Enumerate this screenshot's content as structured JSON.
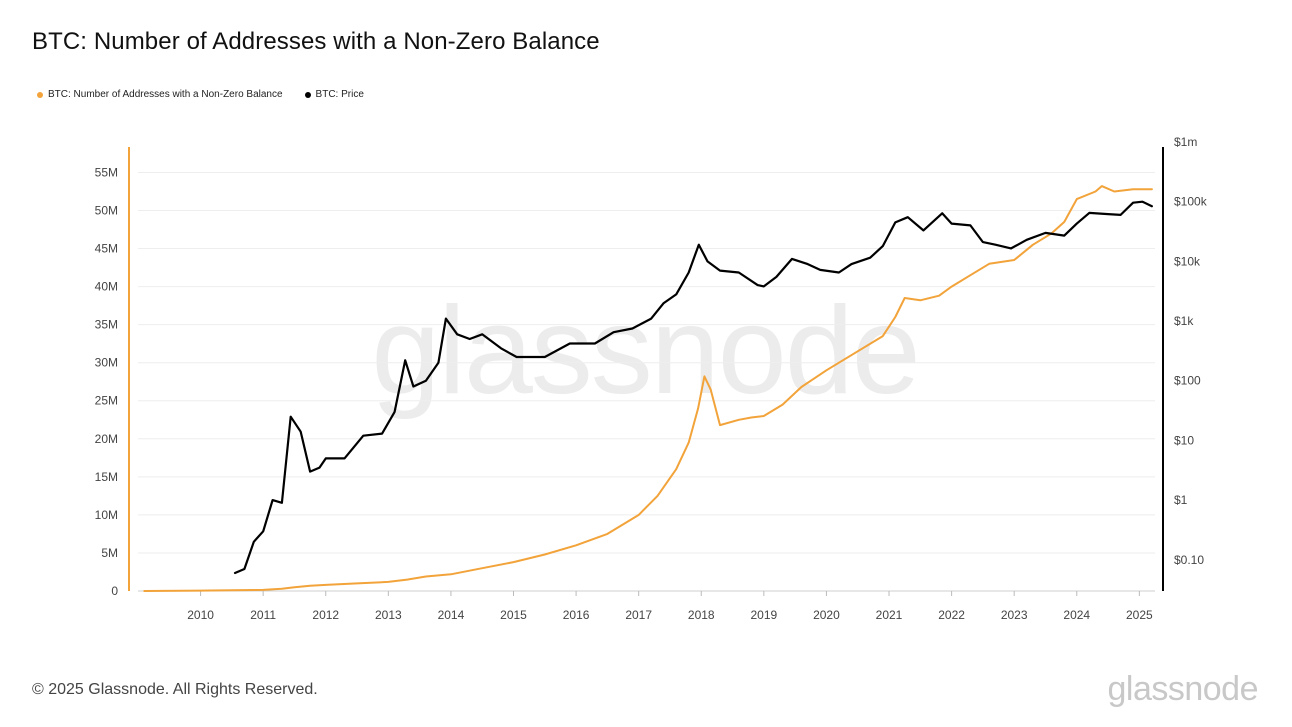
{
  "chart_data": {
    "type": "line",
    "title": "BTC: Number of Addresses with a Non-Zero Balance",
    "legend": [
      {
        "name": "BTC: Number of Addresses with a Non-Zero Balance",
        "color": "#f2a33a"
      },
      {
        "name": "BTC: Price",
        "color": "#000000"
      }
    ],
    "legend_position": "top-left",
    "grid": true,
    "watermark": "glassnode",
    "x_ticks": [
      "2010",
      "2011",
      "2012",
      "2013",
      "2014",
      "2015",
      "2016",
      "2017",
      "2018",
      "2019",
      "2020",
      "2021",
      "2022",
      "2023",
      "2024",
      "2025"
    ],
    "xlim": [
      2009.0,
      2025.25
    ],
    "y_left": {
      "ticks": [
        "0",
        "5M",
        "10M",
        "15M",
        "20M",
        "25M",
        "30M",
        "35M",
        "40M",
        "45M",
        "50M",
        "55M"
      ],
      "tick_values": [
        0,
        5,
        10,
        15,
        20,
        25,
        30,
        35,
        40,
        45,
        50,
        55
      ],
      "unit": "M",
      "ylim": [
        0,
        59
      ]
    },
    "y_right": {
      "scale": "log",
      "ticks": [
        "$0.10",
        "$1",
        "$10",
        "$100",
        "$1k",
        "$10k",
        "$100k",
        "$1m"
      ],
      "tick_values": [
        0.1,
        1,
        10,
        100,
        1000,
        10000,
        100000,
        1000000
      ],
      "ylim": [
        0.03,
        1000000
      ]
    },
    "series": [
      {
        "name": "BTC: Number of Addresses with a Non-Zero Balance",
        "axis": "left",
        "color": "#f2a33a",
        "x": [
          2009.1,
          2010.0,
          2010.5,
          2011.0,
          2011.3,
          2011.5,
          2011.75,
          2012.0,
          2012.5,
          2013.0,
          2013.3,
          2013.6,
          2014.0,
          2014.5,
          2015.0,
          2015.5,
          2016.0,
          2016.5,
          2017.0,
          2017.3,
          2017.6,
          2017.8,
          2017.95,
          2018.05,
          2018.15,
          2018.3,
          2018.6,
          2018.8,
          2019.0,
          2019.3,
          2019.6,
          2020.0,
          2020.5,
          2020.9,
          2021.1,
          2021.25,
          2021.5,
          2021.8,
          2022.0,
          2022.3,
          2022.6,
          2023.0,
          2023.3,
          2023.6,
          2023.8,
          2024.0,
          2024.3,
          2024.4,
          2024.6,
          2024.9,
          2025.2
        ],
        "y": [
          0,
          0.05,
          0.1,
          0.15,
          0.3,
          0.5,
          0.7,
          0.8,
          1.0,
          1.2,
          1.5,
          1.9,
          2.2,
          3.0,
          3.8,
          4.8,
          6.0,
          7.5,
          10.0,
          12.5,
          16.0,
          19.5,
          24.0,
          28.2,
          26.5,
          21.8,
          22.5,
          22.8,
          23.0,
          24.5,
          26.8,
          29.0,
          31.5,
          33.5,
          36.0,
          38.5,
          38.2,
          38.8,
          40.0,
          41.5,
          43.0,
          43.5,
          45.5,
          47.0,
          48.5,
          51.5,
          52.5,
          53.2,
          52.5,
          52.8,
          52.8
        ]
      },
      {
        "name": "BTC: Price",
        "axis": "right",
        "color": "#000000",
        "x": [
          2010.55,
          2010.7,
          2010.85,
          2011.0,
          2011.15,
          2011.3,
          2011.44,
          2011.6,
          2011.75,
          2011.9,
          2012.0,
          2012.3,
          2012.6,
          2012.9,
          2013.1,
          2013.27,
          2013.4,
          2013.6,
          2013.8,
          2013.92,
          2014.1,
          2014.3,
          2014.5,
          2014.8,
          2015.05,
          2015.5,
          2015.9,
          2016.3,
          2016.6,
          2016.9,
          2017.2,
          2017.4,
          2017.6,
          2017.8,
          2017.96,
          2018.1,
          2018.3,
          2018.6,
          2018.9,
          2019.0,
          2019.2,
          2019.45,
          2019.7,
          2019.9,
          2020.2,
          2020.4,
          2020.7,
          2020.9,
          2021.1,
          2021.3,
          2021.55,
          2021.85,
          2022.0,
          2022.3,
          2022.5,
          2022.7,
          2022.95,
          2023.2,
          2023.5,
          2023.8,
          2024.0,
          2024.2,
          2024.5,
          2024.7,
          2024.9,
          2025.05,
          2025.2
        ],
        "y": [
          0.06,
          0.07,
          0.2,
          0.3,
          1,
          0.9,
          25,
          14,
          3,
          3.5,
          5,
          5,
          12,
          13,
          30,
          220,
          80,
          100,
          200,
          1100,
          600,
          500,
          600,
          350,
          250,
          250,
          420,
          420,
          650,
          750,
          1100,
          2000,
          2800,
          6500,
          19000,
          10000,
          7000,
          6500,
          4000,
          3800,
          5500,
          11000,
          9000,
          7200,
          6500,
          9000,
          11500,
          18000,
          45000,
          55000,
          33000,
          64000,
          43000,
          40000,
          21000,
          19000,
          16500,
          23000,
          30000,
          27000,
          43000,
          65000,
          62000,
          60000,
          96000,
          100000,
          84000
        ]
      }
    ]
  },
  "footer": {
    "copyright": "© 2025 Glassnode. All Rights Reserved.",
    "logo": "glassnode"
  }
}
